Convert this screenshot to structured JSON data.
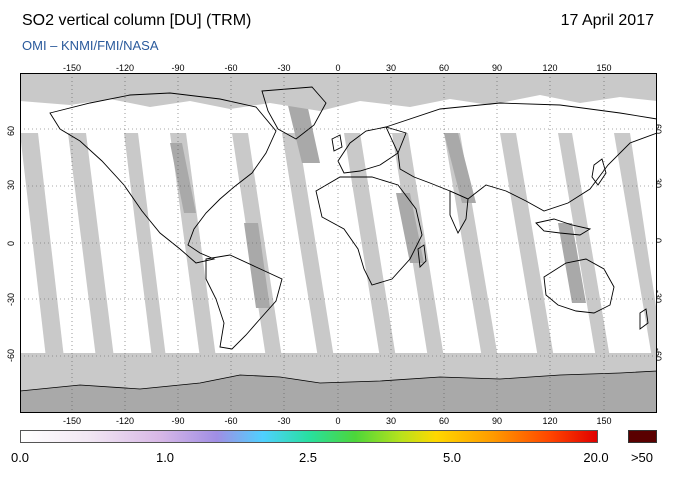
{
  "header": {
    "title": "SO2 vertical column [DU] (TRM)",
    "date": "17 April 2017",
    "credit": "OMI  –  KNMI/FMI/NASA"
  },
  "axes": {
    "lon_ticks": [
      "-150",
      "-120",
      "-90",
      "-60",
      "-30",
      "0",
      "30",
      "60",
      "90",
      "120",
      "150"
    ],
    "lat_ticks": [
      "60",
      "30",
      "0",
      "-30",
      "-60"
    ]
  },
  "colorbar": {
    "labels": [
      "0.0",
      "1.0",
      "2.5",
      "5.0",
      "20.0"
    ],
    "over_label": ">50",
    "over_color": "#5a0000"
  },
  "colors": {
    "no_data": "#c9c9c9",
    "ocean": "#ffffff",
    "swath_gap": "#a9a9a9",
    "land_outline": "#000000"
  }
}
